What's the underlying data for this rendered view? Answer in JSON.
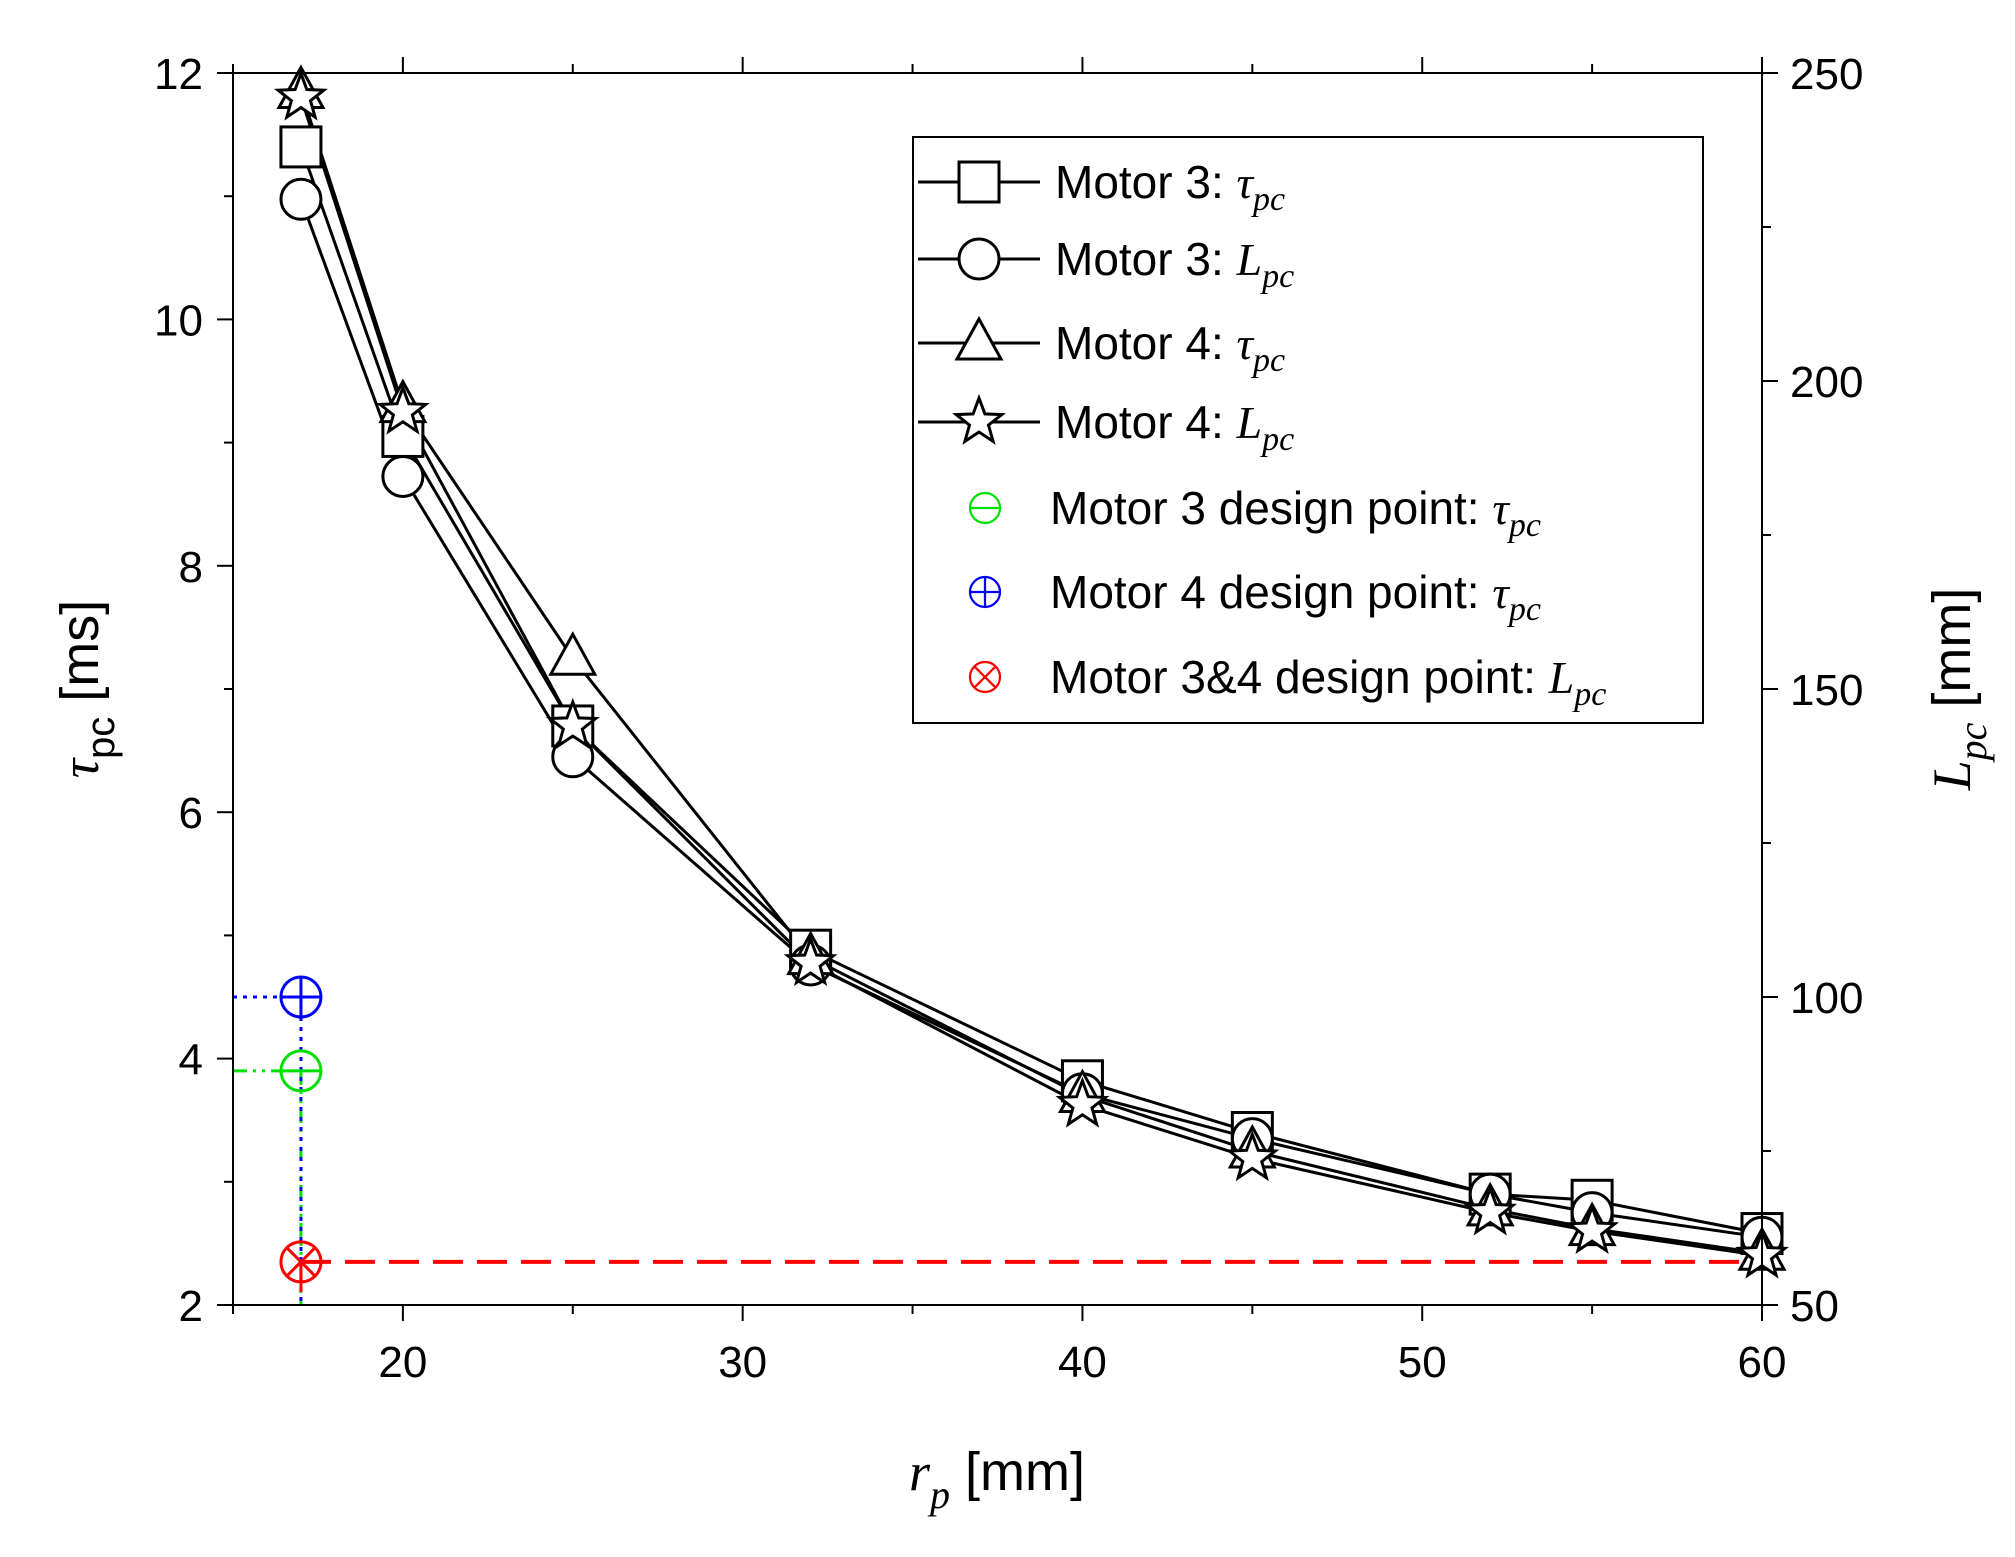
{
  "chart_data": {
    "type": "line",
    "title": "",
    "x": [
      17,
      20,
      25,
      32,
      40,
      45,
      52,
      55,
      60
    ],
    "xlim": [
      15,
      60
    ],
    "xticks": [
      20,
      30,
      40,
      50,
      60
    ],
    "xlabel": {
      "symbol": "r",
      "subscript": "p",
      "unit": " [mm]"
    },
    "y_left": {
      "lim": [
        2,
        12
      ],
      "ticks": [
        2,
        4,
        6,
        8,
        10,
        12
      ],
      "label": {
        "symbol": "τ",
        "subscript": "pc",
        "unit": " [ms]"
      }
    },
    "y_right": {
      "lim": [
        50,
        250
      ],
      "ticks": [
        50,
        100,
        150,
        200,
        250
      ],
      "label": {
        "symbol": "L",
        "subscript": "pc",
        "unit": " [mm]"
      }
    },
    "series": [
      {
        "name": "Motor 3: τpc",
        "legend_text": "Motor 3: ",
        "legend_symbol": "τ",
        "legend_sub": "pc",
        "axis": "left",
        "marker": "square",
        "color": "#000000",
        "values": [
          11.4,
          9.05,
          6.7,
          4.88,
          3.82,
          3.4,
          2.9,
          2.85,
          2.58
        ]
      },
      {
        "name": "Motor 3: Lpc",
        "legend_text": "Motor 3: ",
        "legend_symbol": "L",
        "legend_sub": "pc",
        "axis": "right",
        "marker": "circle",
        "color": "#000000",
        "values": [
          229.5,
          184.5,
          139,
          105.2,
          84.3,
          77,
          68,
          65,
          61
        ]
      },
      {
        "name": "Motor 4: τpc",
        "legend_text": "Motor 4: ",
        "legend_symbol": "τ",
        "legend_sub": "pc",
        "axis": "left",
        "marker": "triangle",
        "color": "#000000",
        "values": [
          11.85,
          9.3,
          7.25,
          4.82,
          3.7,
          3.25,
          2.78,
          2.62,
          2.42
        ]
      },
      {
        "name": "Motor 4: Lpc",
        "legend_text": "Motor 4: ",
        "legend_symbol": "L",
        "legend_sub": "pc",
        "axis": "right",
        "marker": "star",
        "color": "#000000",
        "values": [
          246,
          195,
          144,
          105.5,
          82.5,
          73.8,
          65,
          62,
          58
        ]
      }
    ],
    "design_points": [
      {
        "name": "Motor 3 design point: τpc",
        "legend_text": "Motor 3 design point: ",
        "legend_symbol": "τ",
        "legend_sub": "pc",
        "x": 17,
        "y": 3.9,
        "axis": "left",
        "marker": "theta",
        "color": "#00e000",
        "line_style": "dash-dot-dot"
      },
      {
        "name": "Motor 4 design point: τpc",
        "legend_text": "Motor 4 design point: ",
        "legend_symbol": "τ",
        "legend_sub": "pc",
        "x": 17,
        "y": 4.5,
        "axis": "left",
        "marker": "plus-circle",
        "color": "#0000ff",
        "line_style": "dotted"
      },
      {
        "name": "Motor 3&4 design point: Lpc",
        "legend_text": "Motor 3&4 design point: ",
        "legend_symbol": "L",
        "legend_sub": "pc",
        "x": 17,
        "y": 57,
        "axis": "right",
        "marker": "x-circle",
        "color": "#ff0000",
        "line_style": "dashed"
      }
    ],
    "legend_position": "top-right",
    "grid": false
  }
}
